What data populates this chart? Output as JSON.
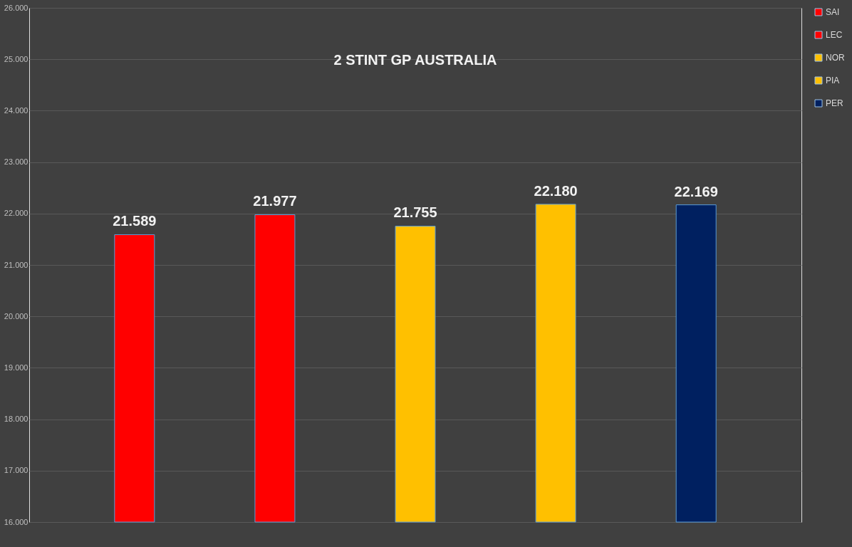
{
  "chart_data": {
    "type": "bar",
    "title": "2 STINT GP AUSTRALIA",
    "categories": [
      null
    ],
    "series": [
      {
        "name": "SAI",
        "color": "#ff0000",
        "values": [
          21.589
        ],
        "value_labels": [
          "21.589"
        ]
      },
      {
        "name": "LEC",
        "color": "#ff0000",
        "values": [
          21.977
        ],
        "value_labels": [
          "21.977"
        ]
      },
      {
        "name": "NOR",
        "color": "#ffc000",
        "values": [
          21.755
        ],
        "value_labels": [
          "21.755"
        ]
      },
      {
        "name": "PIA",
        "color": "#ffc000",
        "values": [
          22.18
        ],
        "value_labels": [
          "22.180"
        ]
      },
      {
        "name": "PER",
        "color": "#002060",
        "values": [
          22.169
        ],
        "value_labels": [
          "22.169"
        ]
      }
    ],
    "ylim": [
      16,
      26
    ],
    "yticks": [
      {
        "value": 16,
        "label": "16.000"
      },
      {
        "value": 17,
        "label": "17.000"
      },
      {
        "value": 18,
        "label": "18.000"
      },
      {
        "value": 19,
        "label": "19.000"
      },
      {
        "value": 20,
        "label": "20.000"
      },
      {
        "value": 21,
        "label": "21.000"
      },
      {
        "value": 22,
        "label": "22.000"
      },
      {
        "value": 23,
        "label": "23.000"
      },
      {
        "value": 24,
        "label": "24.000"
      },
      {
        "value": 25,
        "label": "25.000"
      },
      {
        "value": 26,
        "label": "26.000"
      }
    ],
    "grid": "y",
    "legend": "right",
    "tick_labels": "y"
  }
}
